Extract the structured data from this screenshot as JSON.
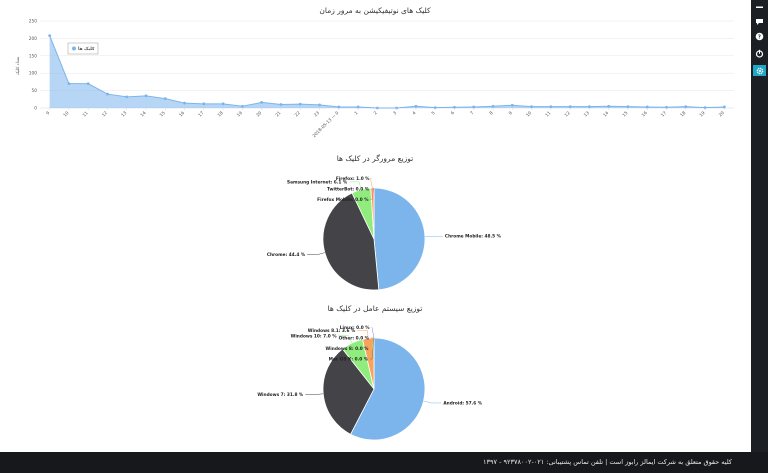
{
  "footer": {
    "text": "۱۳۹۷ - کلیه حقوق متعلق به شرکت ایمالز رابوز است | تلفن تماس پشتیبانی: ۰۲۱-۹۲۳۷۸۰۰۲"
  },
  "sidebar": {
    "icons": [
      "top-bar-icon",
      "chat-icon",
      "help-icon",
      "power-icon",
      "bar-chart-icon",
      "settings-icon"
    ],
    "active_color": "#1fa7c9"
  },
  "chart_data": [
    {
      "type": "area",
      "title": "کلیک های نوتیفیکیشن به مرور زمان",
      "ylabel": "تعداد کلیک",
      "legend": {
        "label": "کلیک ها",
        "position": "top-left"
      },
      "ylim": [
        0,
        250
      ],
      "yticks": [
        0,
        50,
        100,
        150,
        200,
        250
      ],
      "grid": true,
      "color": "#7cb5ec",
      "x": [
        "9",
        "10",
        "11",
        "12",
        "13",
        "14",
        "15",
        "16",
        "17",
        "18",
        "19",
        "20",
        "21",
        "22",
        "23",
        "2018-05-13 — 0",
        "1",
        "2",
        "3",
        "4",
        "5",
        "6",
        "7",
        "8",
        "9",
        "10",
        "11",
        "12",
        "13",
        "14",
        "15",
        "16",
        "17",
        "18",
        "19",
        "20"
      ],
      "values": [
        208,
        70,
        70,
        40,
        32,
        35,
        27,
        14,
        12,
        12,
        5,
        16,
        10,
        11,
        9,
        3,
        3,
        0,
        0,
        5,
        1,
        2,
        3,
        5,
        8,
        4,
        4,
        4,
        4,
        5,
        4,
        3,
        2,
        4,
        1,
        3
      ]
    },
    {
      "type": "pie",
      "title": "توزیع مرورگر در کلیک ها",
      "slices": [
        {
          "label": "Chrome Mobile",
          "value": 48.5,
          "color": "#7cb5ec"
        },
        {
          "label": "Chrome",
          "value": 44.4,
          "color": "#434348"
        },
        {
          "label": "Samsung Internet",
          "value": 6.1,
          "color": "#90ed7d"
        },
        {
          "label": "Firefox",
          "value": 1.0,
          "color": "#f7a35c"
        },
        {
          "label": "TwitterBot",
          "value": 0.0,
          "color": "#8085e9"
        },
        {
          "label": "Firefox Mobile",
          "value": 0.0,
          "color": "#f15c80"
        }
      ]
    },
    {
      "type": "pie",
      "title": "توزیع سیستم عامل در کلیک ها",
      "slices": [
        {
          "label": "Android",
          "value": 57.6,
          "color": "#7cb5ec"
        },
        {
          "label": "Windows 7",
          "value": 31.8,
          "color": "#434348"
        },
        {
          "label": "Windows 10",
          "value": 7.0,
          "color": "#90ed7d"
        },
        {
          "label": "Windows 8.1",
          "value": 3.6,
          "color": "#f7a35c"
        },
        {
          "label": "Linux",
          "value": 0.0,
          "color": "#8085e9"
        },
        {
          "label": "Other",
          "value": 0.0,
          "color": "#f15c80"
        },
        {
          "label": "Windows 8",
          "value": 0.0,
          "color": "#e4d354"
        },
        {
          "label": "Mac OS X",
          "value": 0.0,
          "color": "#2b908f"
        }
      ]
    }
  ]
}
